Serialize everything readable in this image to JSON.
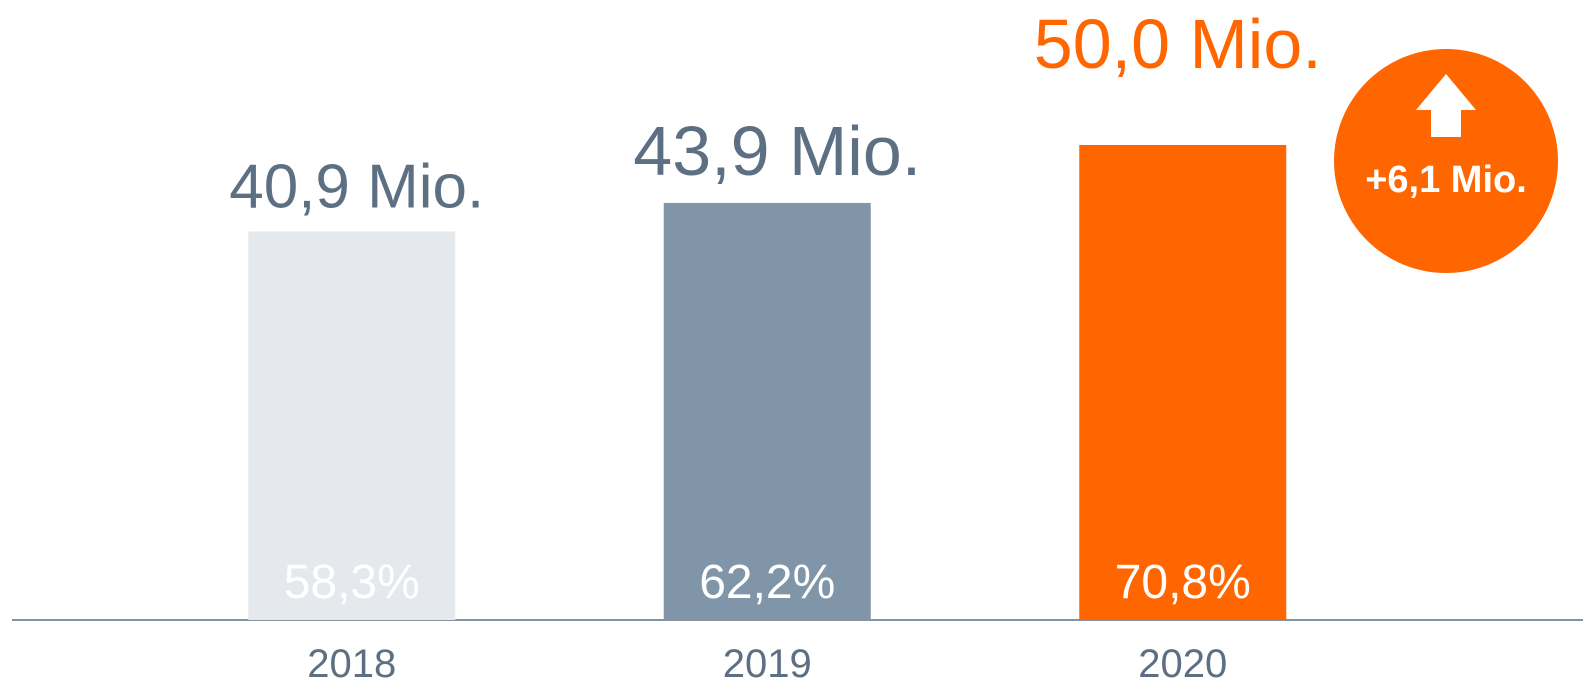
{
  "chart_data": {
    "type": "bar",
    "categories": [
      "2018",
      "2019",
      "2020"
    ],
    "values": [
      40.9,
      43.9,
      50.0
    ],
    "value_labels": [
      "40,9 Mio.",
      "43,9 Mio.",
      "50,0 Mio."
    ],
    "shares": [
      58.3,
      62.2,
      70.8
    ],
    "share_labels": [
      "58,3%",
      "62,2%",
      "70,8%"
    ],
    "colors": [
      "#e5e8ed",
      "#8095a8",
      "#ff6600"
    ],
    "label_colors": [
      "#5d6f82",
      "#5d6f82",
      "#ff6600"
    ],
    "ylim": [
      0,
      65
    ],
    "annotation": "+6,1 Mio."
  }
}
